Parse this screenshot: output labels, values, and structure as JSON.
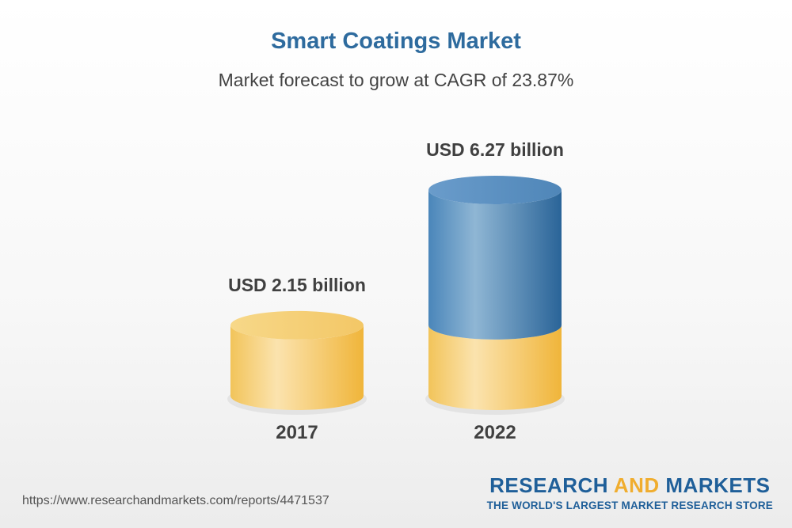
{
  "chart_data": {
    "type": "bar",
    "title": "Smart Coatings Market",
    "subtitle": "Market forecast to grow at CAGR of 23.87%",
    "categories": [
      "2017",
      "2022"
    ],
    "values": [
      2.15,
      6.27
    ],
    "value_labels": [
      "USD 2.15 billion",
      "USD 6.27 billion"
    ],
    "style": "3d-cylinder",
    "colors": {
      "base": "#f2c45a",
      "growth": "#2e6b9e"
    }
  },
  "footer": {
    "url": "https://www.researchandmarkets.com/reports/4471537",
    "brand_main": "RESEARCH",
    "brand_and": "AND",
    "brand_end": "MARKETS",
    "brand_tagline": "THE WORLD'S LARGEST MARKET RESEARCH STORE"
  }
}
